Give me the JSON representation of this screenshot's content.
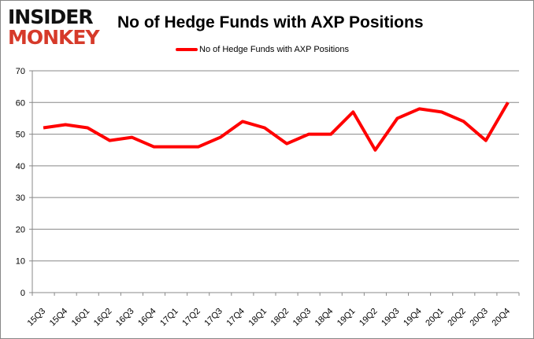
{
  "logo": {
    "line1": "INSIDER",
    "line2": "MONKEY"
  },
  "chart_data": {
    "type": "line",
    "title": "No of Hedge Funds with AXP Positions",
    "categories": [
      "15Q3",
      "15Q4",
      "16Q1",
      "16Q2",
      "16Q3",
      "16Q4",
      "17Q1",
      "17Q2",
      "17Q3",
      "17Q4",
      "18Q1",
      "18Q2",
      "18Q3",
      "18Q4",
      "19Q1",
      "19Q2",
      "19Q3",
      "19Q4",
      "20Q1",
      "20Q2",
      "20Q3",
      "20Q4"
    ],
    "series": [
      {
        "name": "No of Hedge Funds with AXP Positions",
        "color": "#ff0000",
        "values": [
          52,
          53,
          52,
          48,
          49,
          46,
          46,
          46,
          49,
          54,
          52,
          47,
          50,
          50,
          57,
          45,
          55,
          58,
          57,
          54,
          48,
          60
        ]
      }
    ],
    "ylim": [
      0,
      70
    ],
    "yticks": [
      0,
      10,
      20,
      30,
      40,
      50,
      60,
      70
    ],
    "grid": true,
    "legend": "top"
  }
}
